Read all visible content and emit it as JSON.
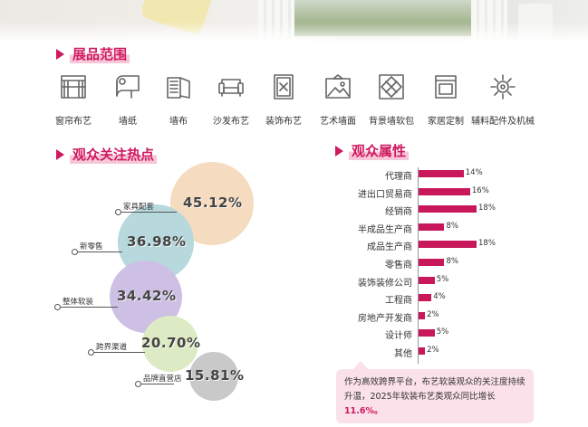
{
  "sections": {
    "scope_title": "展品范围",
    "hotspot_title": "观众关注热点",
    "audience_title": "观众属性"
  },
  "categories": [
    {
      "label": "窗帘布艺",
      "icon": "curtain-icon"
    },
    {
      "label": "墙纸",
      "icon": "wallpaper-roll-icon"
    },
    {
      "label": "墙布",
      "icon": "wallcloth-roll-icon"
    },
    {
      "label": "沙发布艺",
      "icon": "sofa-icon"
    },
    {
      "label": "装饰布艺",
      "icon": "decorative-cloth-icon"
    },
    {
      "label": "艺术墙面",
      "icon": "art-wall-icon"
    },
    {
      "label": "背景墙软包",
      "icon": "padded-wall-icon"
    },
    {
      "label": "家居定制",
      "icon": "cabinet-icon"
    },
    {
      "label": "辅料配件及机械",
      "icon": "gear-icon"
    }
  ],
  "colors": {
    "accent": "#d0195f",
    "bar": "#c8175a",
    "note_bg": "#fbe1ea"
  },
  "chart_data": [
    {
      "type": "bubble",
      "title": "观众关注热点",
      "categories": [
        "家具配套",
        "新零售",
        "整体软装",
        "跨界渠道",
        "品牌直营店"
      ],
      "values": [
        45.12,
        36.98,
        34.42,
        20.7,
        15.81
      ],
      "labels": [
        "45.12%",
        "36.98%",
        "34.42%",
        "20.70%",
        "15.81%"
      ],
      "colors": [
        "#f5dcc0",
        "#b7d8dc",
        "#cdc0e4",
        "#dcebc3",
        "#c9c9c9"
      ]
    },
    {
      "type": "bar",
      "orientation": "horizontal",
      "title": "观众属性",
      "categories": [
        "代理商",
        "进出口贸易商",
        "经销商",
        "半成品生产商",
        "成品生产商",
        "零售商",
        "装饰装修公司",
        "工程商",
        "房地产开发商",
        "设计师",
        "其他"
      ],
      "values": [
        14,
        16,
        18,
        8,
        18,
        8,
        5,
        4,
        2,
        5,
        2
      ],
      "labels": [
        "14%",
        "16%",
        "18%",
        "8%",
        "18%",
        "8%",
        "5%",
        "4%",
        "2%",
        "5%",
        "2%"
      ],
      "unit": "%"
    }
  ],
  "note": {
    "text": "作为高效跨界平台，布艺软装观众的关注度持续升温，2025年软装布艺类观众同比增长",
    "highlight": "11.6%。"
  }
}
